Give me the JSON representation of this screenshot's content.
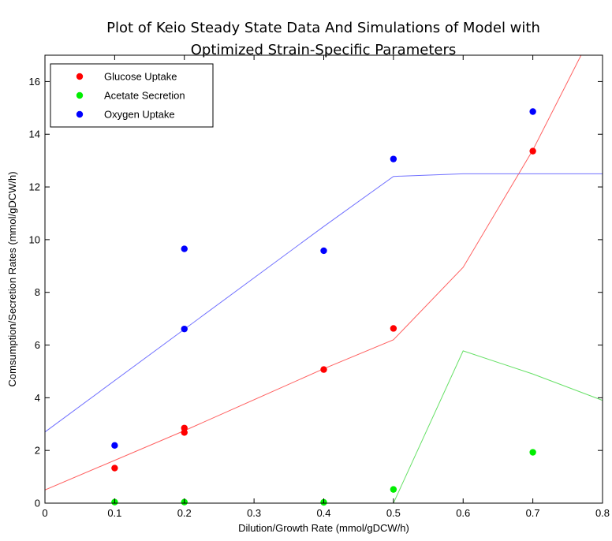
{
  "chart_data": {
    "type": "scatter",
    "title_line1": "Plot of Keio Steady State Data And Simulations of Model with",
    "title_line2": "Optimized Strain-Specific Parameters",
    "xlabel": "Dilution/Growth Rate (mmol/gDCW/h)",
    "ylabel": "Comsumption/Secretion Rates (mmol/gDCW/h)",
    "xlim": [
      0,
      0.8
    ],
    "ylim": [
      0,
      17
    ],
    "xticks": [
      0,
      0.1,
      0.2,
      0.3,
      0.4,
      0.5,
      0.6,
      0.7,
      0.8
    ],
    "xtick_labels": [
      "0",
      "0.1",
      "0.2",
      "0.3",
      "0.4",
      "0.5",
      "0.6",
      "0.7",
      "0.8"
    ],
    "yticks": [
      0,
      2,
      4,
      6,
      8,
      10,
      12,
      14,
      16
    ],
    "ytick_labels": [
      "0",
      "2",
      "4",
      "6",
      "8",
      "10",
      "12",
      "14",
      "16"
    ],
    "grid": false,
    "legend_position": "top-left",
    "series": [
      {
        "name": "Glucose Uptake",
        "color": "#ff0000",
        "line_color": "#ff6060",
        "points": [
          [
            0.1,
            1.33
          ],
          [
            0.2,
            2.85
          ],
          [
            0.2,
            2.68
          ],
          [
            0.4,
            5.07
          ],
          [
            0.5,
            6.63
          ],
          [
            0.7,
            13.36
          ]
        ],
        "line": [
          [
            0,
            0.5
          ],
          [
            0.2,
            2.75
          ],
          [
            0.4,
            5.1
          ],
          [
            0.5,
            6.2
          ],
          [
            0.6,
            8.95
          ],
          [
            0.7,
            13.4
          ],
          [
            0.8,
            18.6
          ]
        ]
      },
      {
        "name": "Acetate Secretion",
        "color": "#00ee00",
        "line_color": "#66e066",
        "points": [
          [
            0.1,
            0.04
          ],
          [
            0.2,
            0.04
          ],
          [
            0.4,
            0.03
          ],
          [
            0.5,
            0.52
          ],
          [
            0.7,
            1.93
          ]
        ],
        "line": [
          [
            0,
            0
          ],
          [
            0.5,
            0
          ],
          [
            0.6,
            5.78
          ],
          [
            0.7,
            4.9
          ],
          [
            0.8,
            3.9
          ]
        ]
      },
      {
        "name": "Oxygen Uptake",
        "color": "#0000ff",
        "line_color": "#7070ff",
        "points": [
          [
            0.1,
            2.19
          ],
          [
            0.2,
            9.65
          ],
          [
            0.2,
            6.61
          ],
          [
            0.4,
            9.58
          ],
          [
            0.5,
            13.06
          ],
          [
            0.7,
            14.86
          ]
        ],
        "line": [
          [
            0,
            2.7
          ],
          [
            0.2,
            6.6
          ],
          [
            0.4,
            10.5
          ],
          [
            0.5,
            12.4
          ],
          [
            0.6,
            12.5
          ],
          [
            0.8,
            12.5
          ]
        ]
      }
    ]
  }
}
